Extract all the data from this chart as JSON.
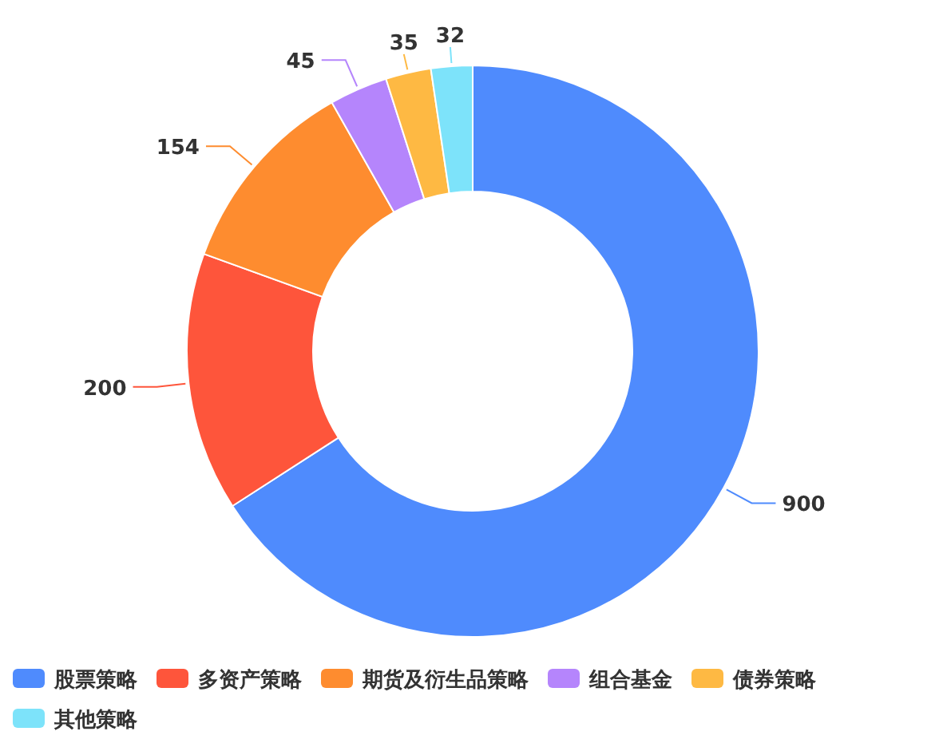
{
  "chart_data": {
    "type": "donut",
    "categories": [
      "股票策略",
      "多资产策略",
      "期货及衍生品策略",
      "组合基金",
      "债券策略",
      "其他策略"
    ],
    "values": [
      900,
      200,
      154,
      45,
      35,
      32
    ],
    "colors": [
      "#4f8bfd",
      "#fe553b",
      "#fe8c2f",
      "#b585fc",
      "#feb943",
      "#7de3fa"
    ],
    "data_labels": true,
    "legend": "bottom"
  }
}
